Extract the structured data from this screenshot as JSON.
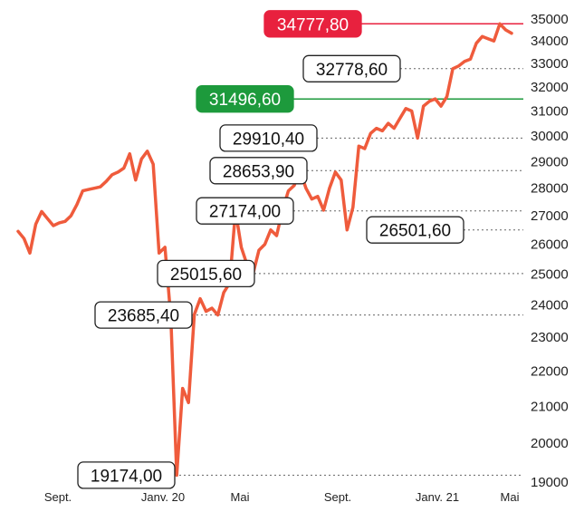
{
  "chart_data": {
    "type": "line",
    "title": "",
    "xlabel": "",
    "ylabel": "",
    "ylim": [
      19000,
      35000
    ],
    "x_ticks": [
      "Sept.",
      "Janv. 20",
      "Mai",
      "Sept.",
      "Janv. 21",
      "Mai"
    ],
    "y_ticks": [
      19000,
      20000,
      21000,
      22000,
      23000,
      24000,
      25000,
      26000,
      27000,
      28000,
      29000,
      30000,
      31000,
      32000,
      33000,
      34000,
      35000
    ],
    "line_color": "#ef5b3c",
    "series": [
      {
        "values": [
          26450,
          26200,
          25700,
          26700,
          27150,
          26900,
          26650,
          26750,
          26800,
          27000,
          27400,
          27900,
          27950,
          28000,
          28050,
          28250,
          28500,
          28600,
          28750,
          29300,
          28300,
          29100,
          29400,
          28900,
          25700,
          25900,
          23600,
          19174,
          21500,
          21100,
          23700,
          24200,
          23800,
          23900,
          23685,
          24400,
          24700,
          27174,
          25900,
          25300,
          25015.6,
          25800,
          26000,
          26500,
          26300,
          27200,
          27900,
          28100,
          28653.9,
          28000,
          27600,
          27700,
          27200,
          28000,
          28600,
          28300,
          26500,
          27300,
          29600,
          29500,
          30100,
          30300,
          30200,
          30500,
          30300,
          30700,
          31100,
          31000,
          29910.4,
          31200,
          31400,
          31500,
          31200,
          31600,
          32778.6,
          32900,
          33100,
          33200,
          33900,
          34200,
          34100,
          34000,
          34777.8,
          34500,
          34350
        ]
      }
    ],
    "annotations": [
      {
        "label": "34777,80",
        "value": 34777.8,
        "style": "highlight",
        "color": "#e8213e"
      },
      {
        "label": "32778,60",
        "value": 32778.6,
        "style": "box"
      },
      {
        "label": "31496,60",
        "value": 31496.6,
        "style": "highlight",
        "color": "#1d9a3c"
      },
      {
        "label": "29910,40",
        "value": 29910.4,
        "style": "box"
      },
      {
        "label": "28653,90",
        "value": 28653.9,
        "style": "box"
      },
      {
        "label": "27174,00",
        "value": 27174,
        "style": "box"
      },
      {
        "label": "26501,60",
        "value": 26501.6,
        "style": "box"
      },
      {
        "label": "25015,60",
        "value": 25015.6,
        "style": "box"
      },
      {
        "label": "23685,40",
        "value": 23685.4,
        "style": "box"
      },
      {
        "label": "19174,00",
        "value": 19174,
        "style": "box"
      }
    ]
  }
}
